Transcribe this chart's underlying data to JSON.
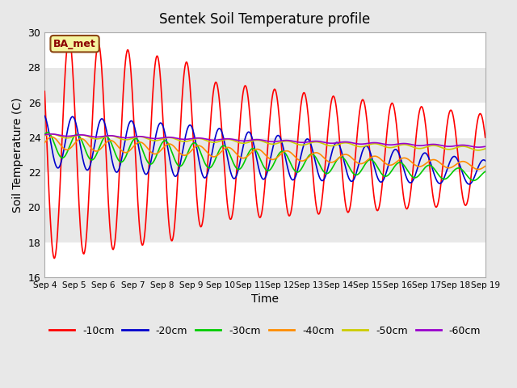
{
  "title": "Sentek Soil Temperature profile",
  "xlabel": "Time",
  "ylabel": "Soil Temperature (C)",
  "ylim": [
    16,
    30
  ],
  "x_tick_labels": [
    "Sep 4",
    "Sep 5",
    "Sep 6",
    "Sep 7",
    "Sep 8",
    "Sep 9",
    "Sep 10",
    "Sep 11",
    "Sep 12",
    "Sep 13",
    "Sep 14",
    "Sep 15",
    "Sep 16",
    "Sep 17",
    "Sep 18",
    "Sep 19"
  ],
  "legend_labels": [
    "-10cm",
    "-20cm",
    "-30cm",
    "-40cm",
    "-50cm",
    "-60cm"
  ],
  "legend_colors": [
    "#ff0000",
    "#0000cd",
    "#00cc00",
    "#ff8c00",
    "#cccc00",
    "#9900cc"
  ],
  "annotation_text": "BA_met",
  "bg_color": "#e8e8e8",
  "plot_bg_color": "#e8e8e8",
  "grid_color": "#ffffff",
  "band_color": "#d8d8d8",
  "yticks": [
    16,
    18,
    20,
    22,
    24,
    26,
    28,
    30
  ]
}
